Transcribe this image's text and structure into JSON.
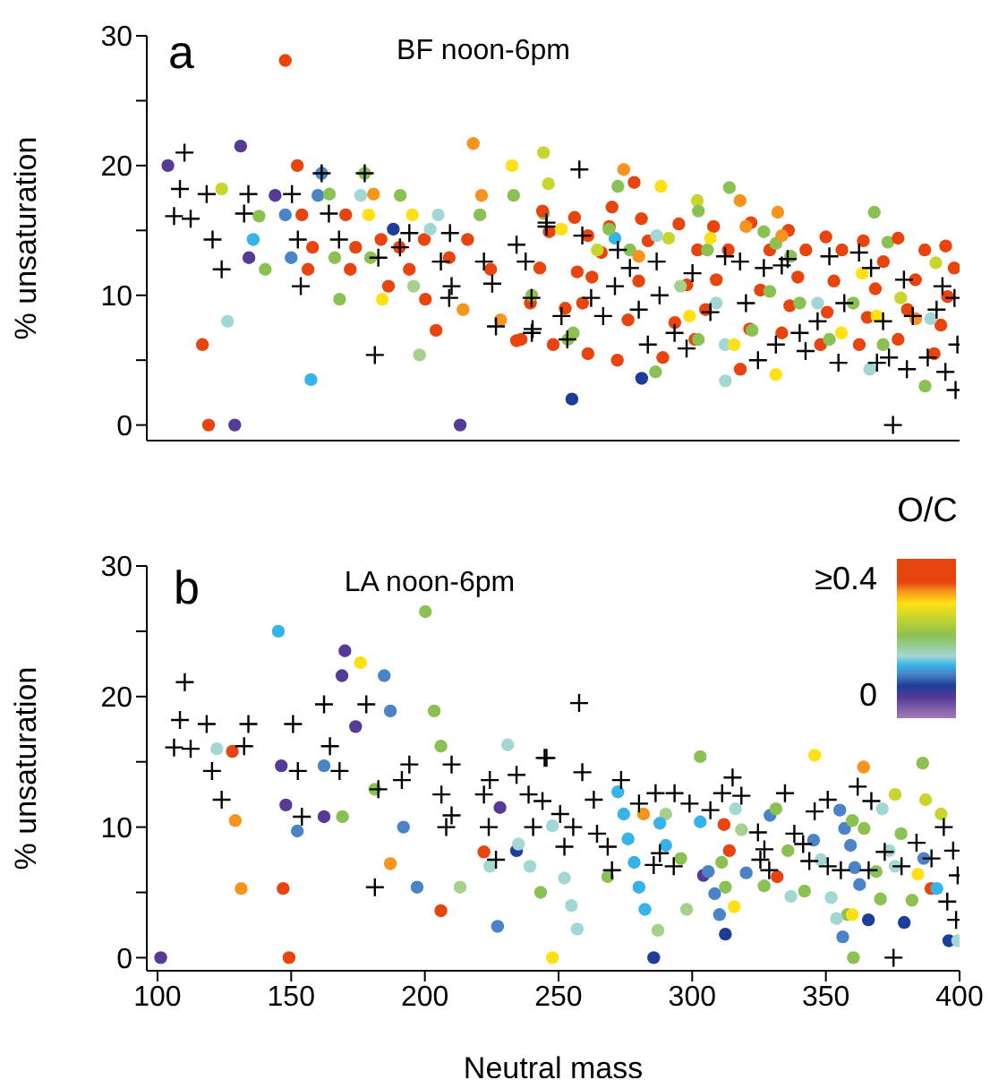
{
  "chart_data": [
    {
      "type": "scatter",
      "title": "BF noon-6pm",
      "annotations": [
        "a"
      ],
      "ylabel": "% unsaturation",
      "xlim": [
        96,
        400
      ],
      "xticks": [
        100,
        150,
        200,
        250,
        300,
        350,
        400
      ],
      "ylim": [
        -1.2,
        30
      ],
      "yticks": [
        0,
        {
          "value": 5,
          "label": null
        },
        10,
        {
          "value": 15,
          "label": null
        },
        20,
        {
          "value": 25,
          "label": null
        },
        30
      ],
      "tick_labels": "y",
      "series": [
        {
          "marker": "circle",
          "x": [
            103.9,
            147.8,
            131.1,
            124,
            116.8,
            119.1,
            128.9,
            126.2,
            135.8,
            134.2,
            140.3,
            138,
            144,
            147.8,
            152.3,
            150,
            154,
            157.4,
            156.3,
            158,
            160,
            161.4,
            164.3,
            166.3,
            168.1,
            170.4,
            172.1,
            174.1,
            176,
            177.5,
            179,
            179.7,
            180.8,
            184.1,
            183.6,
            186.4,
            188.2,
            190.8,
            190.5,
            194.2,
            195.3,
            195.8,
            198,
            199.8,
            200.2,
            202,
            204.2,
            205,
            213.2,
            214.3,
            218.1,
            220.6,
            221.2,
            233.2,
            232.6,
            244.4,
            234.3,
            228.3,
            224.6,
            216,
            209.1,
            246.2,
            274.4,
            272.2,
            278.3,
            288.3,
            301.9,
            313.9,
            317.9,
            332,
            368.1,
            373.2,
            394.8,
            391.1,
            255,
            281.1,
            286.3,
            312.4,
            331.3,
            366.4,
            387.1,
            244.4,
            261,
            253.5,
            236,
            239.5,
            243,
            246.5,
            248,
            252.5,
            257,
            261,
            259,
            262.5,
            266,
            269,
            272,
            276,
            280,
            283.5,
            289,
            293.5,
            298,
            302,
            301,
            305,
            309,
            313.5,
            318,
            321.5,
            325.5,
            329,
            333.5,
            336.5,
            339.5,
            342.5,
            348,
            350.5,
            353,
            356,
            362.5,
            365.5,
            368.5,
            371.5,
            377,
            380.5,
            383.5,
            387,
            390.5,
            393,
            395.5,
            398,
            244,
            256,
            270,
            281,
            295,
            308,
            322,
            336,
            350,
            364,
            377,
            240,
            255.5,
            264.5,
            271.1,
            276.7,
            280,
            286.7,
            291.2,
            295.6,
            299,
            302.3,
            305.7,
            309,
            312.3,
            315.7,
            322.4,
            329,
            331.3,
            333.5,
            336.8,
            340.2,
            346.9,
            351.3,
            355.8,
            360.2,
            363.6,
            369.1,
            371.4,
            378,
            383.6,
            389.2,
            251.1,
            268.9,
            302.3,
            306.8,
            320.1,
            326.8
          ],
          "values": [
            20.0,
            28.1,
            21.5,
            18.2,
            6.2,
            0,
            0,
            8.0,
            14.3,
            12.9,
            12.0,
            16.1,
            17.7,
            16.2,
            20.0,
            12.9,
            16.2,
            3.5,
            12.0,
            13.7,
            17.7,
            19.4,
            17.8,
            12.9,
            9.7,
            16.2,
            12.0,
            13.7,
            17.7,
            19.4,
            16.2,
            12.9,
            17.8,
            9.7,
            14.3,
            10.7,
            15.1,
            17.7,
            13.7,
            12.0,
            16.2,
            10.7,
            5.4,
            14.3,
            9.7,
            15.1,
            7.3,
            16.2,
            0,
            8.9,
            21.7,
            16.2,
            17.7,
            17.7,
            20.0,
            21.0,
            6.5,
            8.1,
            12.0,
            14.3,
            12.9,
            18.6,
            19.7,
            18.4,
            18.7,
            18.4,
            17.3,
            18.3,
            17.3,
            16.4,
            16.4,
            14.1,
            13.8,
            12.5,
            2.0,
            3.6,
            4.1,
            3.4,
            3.9,
            4.3,
            3.0,
            16.3,
            5.5,
            6.6,
            6.6,
            9.4,
            12.1,
            14.9,
            6.2,
            9.0,
            11.8,
            14.6,
            9.4,
            11.4,
            13.3,
            15.3,
            5.0,
            8.1,
            11.1,
            14.2,
            5.2,
            7.9,
            10.8,
            13.5,
            6.6,
            8.9,
            11.2,
            13.5,
            4.3,
            7.4,
            10.4,
            13.5,
            7.1,
            9.2,
            11.4,
            13.5,
            6.2,
            8.7,
            11.1,
            13.5,
            6.2,
            8.3,
            10.5,
            12.6,
            6.6,
            8.9,
            11.2,
            13.5,
            5.5,
            7.7,
            9.9,
            12.1,
            16.5,
            16.0,
            16.8,
            15.9,
            15.5,
            15.3,
            15.6,
            15.0,
            14.5,
            14.2,
            14.4,
            10.0,
            7.1,
            13.5,
            14.4,
            13.5,
            13.0,
            14.6,
            14.4,
            10.7,
            8.4,
            6.6,
            13.5,
            9.4,
            6.2,
            6.2,
            7.3,
            10.3,
            14.0,
            14.6,
            13.0,
            9.4,
            9.4,
            6.6,
            7.1,
            9.4,
            11.7,
            8.4,
            6.2,
            9.8,
            8.2,
            8.2,
            15.1,
            15.1,
            16.5,
            14.4,
            15.3,
            14.9
          ],
          "colors": [
            "#553a96",
            "#e8440e",
            "#553a96",
            "#c8d52f",
            "#e8440e",
            "#e8440e",
            "#553a96",
            "#a3d7d3",
            "#35b4ea",
            "#553a96",
            "#8bc152",
            "#8bc152",
            "#553a96",
            "#4a84c6",
            "#e8440e",
            "#4a84c6",
            "#e8440e",
            "#35b4ea",
            "#e8440e",
            "#e8440e",
            "#4a84c6",
            "#4a84c6",
            "#8bc152",
            "#8bc152",
            "#8bc152",
            "#e8440e",
            "#e8440e",
            "#e8440e",
            "#a3d7d3",
            "#8bc152",
            "#ffe014",
            "#8bc152",
            "#f7941d",
            "#ffe014",
            "#e8440e",
            "#e8440e",
            "#1d3e98",
            "#8bc152",
            "#e8440e",
            "#e8440e",
            "#ffe014",
            "#a8d08d",
            "#a8d08d",
            "#e8440e",
            "#e8440e",
            "#a3d7d3",
            "#e8440e",
            "#a3d7d3",
            "#553a96",
            "#f7941d",
            "#f7941d",
            "#8bc152",
            "#f7941d",
            "#8bc152",
            "#ffe014",
            "#c8d52f",
            "#e8440e",
            "#f7941d",
            "#e8440e",
            "#e8440e",
            "#e8440e",
            "#c8d52f",
            "#f7941d",
            "#8bc152",
            "#e8440e",
            "#ffe014",
            "#c8d52f",
            "#8bc152",
            "#f7941d",
            "#f7941d",
            "#8bc152",
            "#8bc152",
            "#e8440e",
            "#c8d52f",
            "#1d3e98",
            "#1d3e98",
            "#8bc152",
            "#a3d7d3",
            "#ffe014",
            "#a3d7d3",
            "#8bc152",
            "#8bc152",
            "#e8440e",
            "#8bc152",
            "#e8440e",
            "#e8440e",
            "#e8440e",
            "#e8440e",
            "#e8440e",
            "#e8440e",
            "#e8440e",
            "#e8440e",
            "#e8440e",
            "#e8440e",
            "#e8440e",
            "#e8440e",
            "#e8440e",
            "#e8440e",
            "#e8440e",
            "#e8440e",
            "#e8440e",
            "#e8440e",
            "#e8440e",
            "#e8440e",
            "#e8440e",
            "#e8440e",
            "#e8440e",
            "#e8440e",
            "#e8440e",
            "#e8440e",
            "#e8440e",
            "#e8440e",
            "#e8440e",
            "#e8440e",
            "#e8440e",
            "#e8440e",
            "#e8440e",
            "#e8440e",
            "#e8440e",
            "#e8440e",
            "#e8440e",
            "#e8440e",
            "#e8440e",
            "#e8440e",
            "#e8440e",
            "#e8440e",
            "#e8440e",
            "#e8440e",
            "#e8440e",
            "#e8440e",
            "#e8440e",
            "#e8440e",
            "#e8440e",
            "#e8440e",
            "#e8440e",
            "#e8440e",
            "#e8440e",
            "#e8440e",
            "#e8440e",
            "#e8440e",
            "#e8440e",
            "#e8440e",
            "#e8440e",
            "#8bc152",
            "#8bc152",
            "#c8d52f",
            "#35b4ea",
            "#8bc152",
            "#f7941d",
            "#a3d7d3",
            "#c8d52f",
            "#a8d08d",
            "#ffe014",
            "#8bc152",
            "#8bc152",
            "#a3d7d3",
            "#a3d7d3",
            "#ffe014",
            "#8bc152",
            "#8bc152",
            "#8bc152",
            "#f7941d",
            "#8bc152",
            "#8bc152",
            "#a3d7d3",
            "#8bc152",
            "#ffe014",
            "#8bc152",
            "#ffe014",
            "#ffe014",
            "#8bc152",
            "#c8d52f",
            "#f7941d",
            "#a3d7d3",
            "#ffe014",
            "#8bc152",
            "#8bc152",
            "#ffe014",
            "#f7941d",
            "#8bc152"
          ]
        },
        {
          "marker": "cross",
          "color": "#000000",
          "x": [
            110.1,
            108.4,
            106.2,
            112.4,
            118.4,
            120.6,
            124,
            134,
            132.4,
            153.6,
            152.5,
            150.3,
            161.4,
            164.1,
            167.9,
            177.5,
            182.6,
            181.3,
            194.2,
            190.7,
            206,
            209.1,
            209.4,
            210,
            222.1,
            225.2,
            226.6,
            234.3,
            237.7,
            239.9,
            240.3,
            245.5,
            240,
            251.1,
            253.3,
            262.2,
            266.7,
            271.1,
            276.7,
            280,
            283.4,
            287.8,
            293.4,
            297.9,
            300.1,
            306.8,
            312.3,
            317.9,
            320.1,
            324.6,
            326.8,
            331.3,
            333.5,
            340.2,
            342.4,
            346.9,
            351.3,
            354.7,
            356.9,
            362.4,
            366.9,
            369.1,
            371.4,
            373.6,
            379.2,
            380.3,
            382.5,
            388.1,
            391.4,
            393.6,
            394.7,
            398.1,
            399.2,
            398.5,
            375.1,
            257.8,
            245.5,
            258.9,
            272.2,
            286.7,
            335.7
          ],
          "values": [
            21.0,
            18.2,
            16.1,
            15.9,
            17.8,
            14.3,
            12.0,
            17.8,
            16.3,
            10.7,
            14.3,
            17.8,
            19.4,
            16.3,
            14.3,
            19.4,
            12.9,
            5.4,
            14.8,
            13.7,
            12.6,
            9.8,
            14.8,
            10.7,
            12.6,
            10.9,
            7.6,
            13.9,
            12.6,
            9.8,
            7.4,
            15.6,
            7.1,
            8.4,
            6.6,
            9.8,
            8.4,
            10.7,
            12.1,
            8.9,
            6.2,
            10.0,
            7.1,
            5.9,
            11.7,
            8.7,
            13.0,
            12.6,
            9.4,
            5.0,
            12.1,
            6.2,
            12.3,
            7.1,
            5.7,
            8.0,
            13.0,
            4.8,
            9.4,
            13.3,
            12.1,
            4.8,
            8.0,
            5.2,
            11.2,
            4.3,
            8.4,
            5.2,
            8.9,
            10.7,
            4.1,
            9.8,
            6.2,
            2.7,
            0,
            19.7,
            15.3,
            14.6,
            13.5,
            12.6,
            12.8
          ]
        }
      ]
    },
    {
      "type": "scatter",
      "title": "LA noon-6pm",
      "annotations": [
        "b",
        "≥0.4",
        "0"
      ],
      "xlabel": "Neutral mass",
      "ylabel": "% unsaturation",
      "clabel": "O/C",
      "xlim": [
        96,
        400
      ],
      "xticks": [
        100,
        150,
        200,
        250,
        300,
        350,
        400
      ],
      "ylim": [
        -1,
        30
      ],
      "yticks": [
        0,
        {
          "value": 5,
          "label": null
        },
        10,
        {
          "value": 15,
          "label": null
        },
        20,
        {
          "value": 25,
          "label": null
        },
        30
      ],
      "series": [
        {
          "marker": "circle",
          "x": [
            101.2,
            145.2,
            170.1,
            175.9,
            169,
            184.8,
            187.1,
            200.2,
            203.5,
            206,
            174.1,
            122.2,
            128,
            146.3,
            162.3,
            148,
            162.3,
            169.2,
            152.3,
            129.1,
            131.3,
            147,
            149.2,
            181.3,
            192,
            187.1,
            197.1,
            213.2,
            206,
            231,
            228.1,
            222.1,
            224.3,
            234.3,
            235,
            239.3,
            243.3,
            227.2,
            247.7,
            247.7,
            303,
            345.8,
            364.1,
            386.2,
            375.9,
            387.3,
            393.1,
            272.2,
            274.4,
            281.8,
            290.1,
            287.9,
            276,
            278.3,
            280.1,
            282.3,
            287.2,
            285.6,
            290.1,
            295.7,
            297.9,
            303,
            311.9,
            313.9,
            311,
            304.2,
            306,
            308.4,
            312.4,
            310.2,
            312.4,
            315.7,
            318.4,
            316.2,
            329.1,
            331.3,
            331.8,
            335.8,
            326.9,
            320.2,
            336.9,
            342,
            345.4,
            348.1,
            355.2,
            357,
            359.2,
            359.9,
            364.3,
            360.8,
            362.6,
            352,
            358.1,
            359.9,
            354,
            365.9,
            356.3,
            360.3,
            368.8,
            370.4,
            371.1,
            373.7,
            375.9,
            378.1,
            382.2,
            379.3,
            384.4,
            389.3,
            391.5,
            386.6,
            396,
            399.3,
            252.2,
            254.8,
            257,
            268.4
          ],
          "values": [
            0,
            25.0,
            23.5,
            22.6,
            21.6,
            21.6,
            18.9,
            26.5,
            18.9,
            16.2,
            17.7,
            16.0,
            15.8,
            14.7,
            14.7,
            11.7,
            10.8,
            10.8,
            9.7,
            10.5,
            5.3,
            5.3,
            0,
            12.9,
            10.0,
            7.2,
            5.4,
            5.4,
            3.6,
            16.3,
            11.5,
            8.1,
            7.0,
            8.2,
            8.7,
            7.0,
            5.0,
            2.4,
            0,
            10.1,
            15.4,
            15.5,
            14.6,
            14.9,
            12.5,
            12.1,
            11.0,
            12.7,
            11.0,
            11.0,
            11.0,
            10.3,
            9.1,
            7.3,
            5.4,
            3.7,
            2.1,
            0,
            8.6,
            7.6,
            3.7,
            10.4,
            10.2,
            8.2,
            7.3,
            6.3,
            6.6,
            4.9,
            5.4,
            3.3,
            1.8,
            3.9,
            9.8,
            11.4,
            10.9,
            11.4,
            6.2,
            8.2,
            5.5,
            6.5,
            4.7,
            5.1,
            9.0,
            7.5,
            11.3,
            9.9,
            8.6,
            10.5,
            9.9,
            6.9,
            5.6,
            4.6,
            3.3,
            3.3,
            3.0,
            2.9,
            1.6,
            0,
            6.6,
            4.5,
            11.4,
            8.2,
            7.0,
            9.5,
            4.4,
            2.7,
            6.4,
            5.3,
            5.3,
            7.6,
            1.3,
            1.3,
            6.1,
            4.0,
            2.2,
            6.2
          ],
          "colors": [
            "#553a96",
            "#35b4ea",
            "#553a96",
            "#ffe014",
            "#553a96",
            "#4a84c6",
            "#4a84c6",
            "#8bc152",
            "#8bc152",
            "#8bc152",
            "#553a96",
            "#a3d7d3",
            "#e8440e",
            "#553a96",
            "#4a84c6",
            "#553a96",
            "#553a96",
            "#8bc152",
            "#4a84c6",
            "#f7941d",
            "#f7941d",
            "#e8440e",
            "#e8440e",
            "#8bc152",
            "#4a84c6",
            "#f7941d",
            "#4a84c6",
            "#a8d08d",
            "#e8440e",
            "#a3d7d3",
            "#553a96",
            "#e8440e",
            "#a3d7d3",
            "#1d3e98",
            "#a3d7d3",
            "#a3d7d3",
            "#8bc152",
            "#4a84c6",
            "#ffe014",
            "#a3d7d3",
            "#8bc152",
            "#ffe014",
            "#f7941d",
            "#8bc152",
            "#c8d52f",
            "#c8d52f",
            "#c8d52f",
            "#35b4ea",
            "#35b4ea",
            "#f7941d",
            "#a8d08d",
            "#35b4ea",
            "#35b4ea",
            "#35b4ea",
            "#35b4ea",
            "#35b4ea",
            "#a8d08d",
            "#1d3e98",
            "#35b4ea",
            "#8bc152",
            "#a8d08d",
            "#35b4ea",
            "#e8440e",
            "#e8440e",
            "#8bc152",
            "#553a96",
            "#4a84c6",
            "#4a84c6",
            "#8bc152",
            "#4a84c6",
            "#1d3e98",
            "#ffe014",
            "#a8d08d",
            "#a3d7d3",
            "#4a84c6",
            "#8bc152",
            "#e8440e",
            "#8bc152",
            "#8bc152",
            "#4a84c6",
            "#a3d7d3",
            "#8bc152",
            "#4a84c6",
            "#a3d7d3",
            "#4a84c6",
            "#4a84c6",
            "#4a84c6",
            "#8bc152",
            "#8bc152",
            "#4a84c6",
            "#4a84c6",
            "#a3d7d3",
            "#8bc152",
            "#ffe014",
            "#a3d7d3",
            "#1d3e98",
            "#4a84c6",
            "#8bc152",
            "#8bc152",
            "#8bc152",
            "#a3d7d3",
            "#a3d7d3",
            "#a3d7d3",
            "#8bc152",
            "#8bc152",
            "#1d3e98",
            "#ffe014",
            "#e8440e",
            "#35b4ea",
            "#4a84c6",
            "#1d3e98",
            "#a3d7d3",
            "#a3d7d3",
            "#a3d7d3",
            "#a3d7d3",
            "#8bc152"
          ]
        },
        {
          "marker": "cross",
          "color": "#000000",
          "x": [
            110.2,
            108.4,
            106.2,
            112.4,
            118.4,
            120.4,
            124,
            132.4,
            134,
            150.7,
            152.5,
            154,
            162.3,
            164.5,
            168.1,
            178.1,
            182.6,
            181.3,
            194.2,
            191.4,
            206.2,
            208,
            210,
            210,
            222.1,
            224.3,
            223.9,
            226.6,
            234.3,
            238.8,
            240.5,
            244,
            245.5,
            257.7,
            244.8,
            258.9,
            273.4,
            263.2,
            250.6,
            255.5,
            252.2,
            270,
            264.4,
            268.4,
            280.1,
            286.3,
            293.4,
            285.6,
            287.9,
            293.1,
            299,
            306.8,
            311.2,
            315.1,
            318.4,
            324.6,
            325.5,
            327,
            328.8,
            334.7,
            338.2,
            341.5,
            343.8,
            345.8,
            350.7,
            350.7,
            355.6,
            361.9,
            367,
            366,
            372,
            378.3,
            383.9,
            389.5,
            394.1,
            397.6,
            399.3,
            395.4,
            398.7,
            375.3
          ],
          "values": [
            21.1,
            18.2,
            16.1,
            16.0,
            17.9,
            14.3,
            12.1,
            16.2,
            17.9,
            17.9,
            14.3,
            10.8,
            19.4,
            16.2,
            14.3,
            19.4,
            12.9,
            5.4,
            14.8,
            13.6,
            12.5,
            10.0,
            14.8,
            10.9,
            12.5,
            13.6,
            10.0,
            7.5,
            14.0,
            12.5,
            10.0,
            12.0,
            15.3,
            19.5,
            15.3,
            14.2,
            13.6,
            12.1,
            11.0,
            10.0,
            8.5,
            6.7,
            9.5,
            8.5,
            11.8,
            12.6,
            12.6,
            7.1,
            8.0,
            7.0,
            11.8,
            11.3,
            12.6,
            13.8,
            12.4,
            9.6,
            7.5,
            8.3,
            6.7,
            12.6,
            9.5,
            8.7,
            7.4,
            11.2,
            12.1,
            7.0,
            6.7,
            13.1,
            12.0,
            6.7,
            8.1,
            7.0,
            8.8,
            7.6,
            10.0,
            8.2,
            6.3,
            4.3,
            2.9,
            0
          ]
        }
      ]
    }
  ]
}
